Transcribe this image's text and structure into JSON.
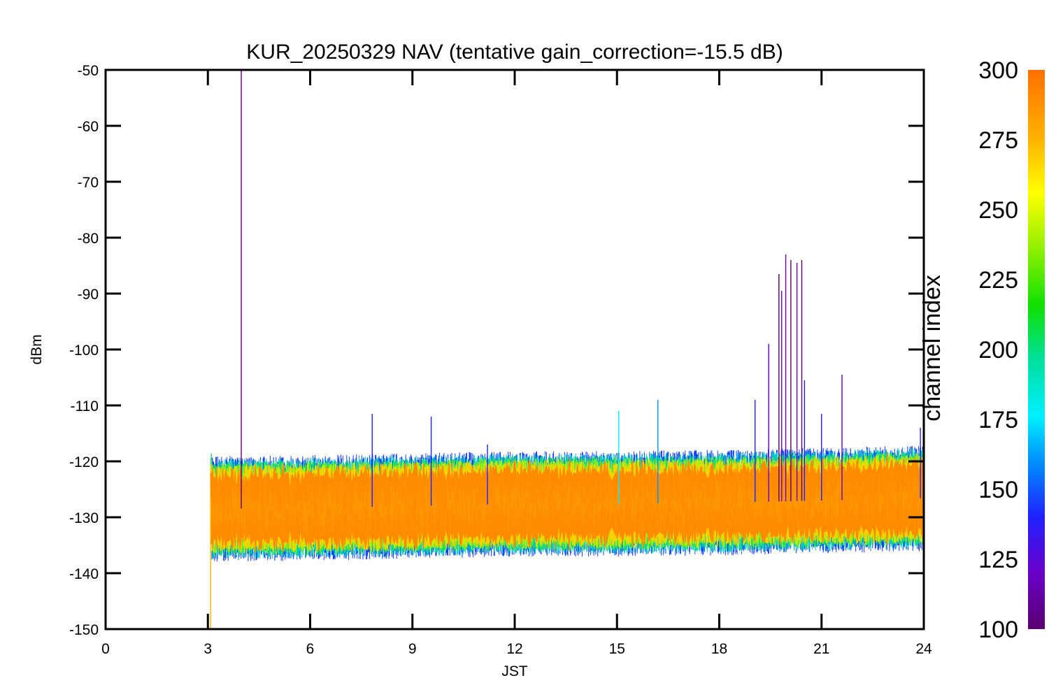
{
  "chart_data": {
    "type": "line",
    "title": "KUR_20250329 NAV (tentative gain_correction=-15.5 dB)",
    "xlabel": "JST",
    "ylabel": "dBm",
    "xlim": [
      0,
      24
    ],
    "ylim": [
      -150,
      -50
    ],
    "x_ticks": [
      "0",
      "3",
      "6",
      "9",
      "12",
      "15",
      "18",
      "21",
      "24"
    ],
    "y_ticks": [
      "-50",
      "-60",
      "-70",
      "-80",
      "-90",
      "-100",
      "-110",
      "-120",
      "-130",
      "-140",
      "-150"
    ],
    "grid": false,
    "data_start_x": 3.08,
    "data_end_x": 24,
    "band": {
      "center_dBm": [
        {
          "x": 3.1,
          "y": -128.5
        },
        {
          "x": 6,
          "y": -128.3
        },
        {
          "x": 9,
          "y": -128.0
        },
        {
          "x": 12,
          "y": -127.6
        },
        {
          "x": 15,
          "y": -127.6
        },
        {
          "x": 18,
          "y": -127.4
        },
        {
          "x": 21,
          "y": -127.0
        },
        {
          "x": 24,
          "y": -126.6
        }
      ],
      "inner_halfwidth_dB": 5,
      "outer_halfwidth_dB": 9
    },
    "spikes": [
      {
        "x": 3.98,
        "y": -50,
        "channel": 115
      },
      {
        "x": 19.45,
        "y": -99,
        "channel": 130
      },
      {
        "x": 19.75,
        "y": -86.5,
        "channel": 115
      },
      {
        "x": 19.83,
        "y": -89.5,
        "channel": 125
      },
      {
        "x": 19.95,
        "y": -83,
        "channel": 120
      },
      {
        "x": 20.1,
        "y": -84,
        "channel": 118
      },
      {
        "x": 20.28,
        "y": -84.5,
        "channel": 122
      },
      {
        "x": 20.42,
        "y": -84,
        "channel": 115
      },
      {
        "x": 20.5,
        "y": -105.5,
        "channel": 140
      },
      {
        "x": 21.0,
        "y": -111.5,
        "channel": 150
      },
      {
        "x": 21.6,
        "y": -104.5,
        "channel": 135
      },
      {
        "x": 19.05,
        "y": -109,
        "channel": 140
      },
      {
        "x": 16.2,
        "y": -109,
        "channel": 160
      },
      {
        "x": 15.05,
        "y": -111,
        "channel": 180
      },
      {
        "x": 9.55,
        "y": -112,
        "channel": 140
      },
      {
        "x": 7.82,
        "y": -111.5,
        "channel": 150
      },
      {
        "x": 11.2,
        "y": -117,
        "channel": 150
      },
      {
        "x": 23.9,
        "y": -114,
        "channel": 140
      },
      {
        "x": 3.08,
        "y": -150,
        "channel": 290
      }
    ],
    "colorbar": {
      "label": "channel index",
      "range": [
        100,
        300
      ],
      "ticks": [
        "300",
        "275",
        "250",
        "225",
        "200",
        "175",
        "150",
        "125",
        "100"
      ],
      "colormap": "rainbow"
    },
    "colors": {
      "band_main": "#ff8c00",
      "band_edge_1": "#ffd000",
      "band_edge_2": "#b4f000",
      "band_edge_3": "#20e060",
      "band_edge_4": "#00c8c8",
      "band_edge_5": "#1040ff",
      "axes": "#000000"
    }
  }
}
